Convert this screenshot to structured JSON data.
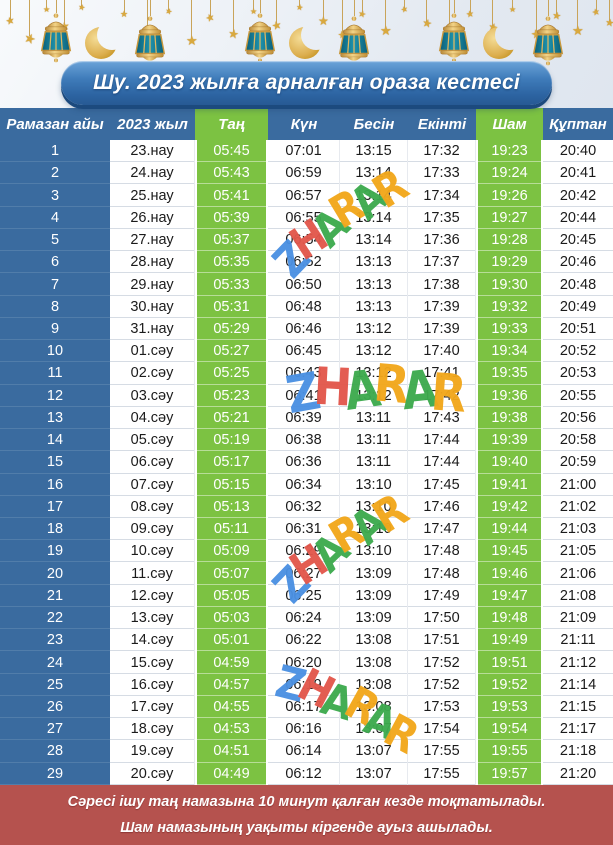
{
  "title": "Шу. 2023 жылға арналған ораза кестесі",
  "table": {
    "columns": [
      {
        "label": "Рамазан айы",
        "accent": false
      },
      {
        "label": "2023 жыл",
        "accent": false
      },
      {
        "label": "Таң",
        "accent": true
      },
      {
        "label": "Күн",
        "accent": false
      },
      {
        "label": "Бесін",
        "accent": false
      },
      {
        "label": "Екінті",
        "accent": false
      },
      {
        "label": "Шам",
        "accent": true
      },
      {
        "label": "Құптан",
        "accent": false
      }
    ],
    "rows": [
      {
        "day": "1",
        "date": "23.нау",
        "times": [
          "05:45",
          "07:01",
          "13:15",
          "17:32",
          "19:23",
          "20:40"
        ]
      },
      {
        "day": "2",
        "date": "24.нау",
        "times": [
          "05:43",
          "06:59",
          "13:14",
          "17:33",
          "19:24",
          "20:41"
        ]
      },
      {
        "day": "3",
        "date": "25.нау",
        "times": [
          "05:41",
          "06:57",
          "13:14",
          "17:34",
          "19:26",
          "20:42"
        ]
      },
      {
        "day": "4",
        "date": "26.нау",
        "times": [
          "05:39",
          "06:55",
          "13:14",
          "17:35",
          "19:27",
          "20:44"
        ]
      },
      {
        "day": "5",
        "date": "27.нау",
        "times": [
          "05:37",
          "06:54",
          "13:14",
          "17:36",
          "19:28",
          "20:45"
        ]
      },
      {
        "day": "6",
        "date": "28.нау",
        "times": [
          "05:35",
          "06:52",
          "13:13",
          "17:37",
          "19:29",
          "20:46"
        ]
      },
      {
        "day": "7",
        "date": "29.нау",
        "times": [
          "05:33",
          "06:50",
          "13:13",
          "17:38",
          "19:30",
          "20:48"
        ]
      },
      {
        "day": "8",
        "date": "30.нау",
        "times": [
          "05:31",
          "06:48",
          "13:13",
          "17:39",
          "19:32",
          "20:49"
        ]
      },
      {
        "day": "9",
        "date": "31.нау",
        "times": [
          "05:29",
          "06:46",
          "13:12",
          "17:39",
          "19:33",
          "20:51"
        ]
      },
      {
        "day": "10",
        "date": "01.сәу",
        "times": [
          "05:27",
          "06:45",
          "13:12",
          "17:40",
          "19:34",
          "20:52"
        ]
      },
      {
        "day": "11",
        "date": "02.сәу",
        "times": [
          "05:25",
          "06:43",
          "13:12",
          "17:41",
          "19:35",
          "20:53"
        ]
      },
      {
        "day": "12",
        "date": "03.сәу",
        "times": [
          "05:23",
          "06:41",
          "13:12",
          "17:42",
          "19:36",
          "20:55"
        ]
      },
      {
        "day": "13",
        "date": "04.сәу",
        "times": [
          "05:21",
          "06:39",
          "13:11",
          "17:43",
          "19:38",
          "20:56"
        ]
      },
      {
        "day": "14",
        "date": "05.сәу",
        "times": [
          "05:19",
          "06:38",
          "13:11",
          "17:44",
          "19:39",
          "20:58"
        ]
      },
      {
        "day": "15",
        "date": "06.сәу",
        "times": [
          "05:17",
          "06:36",
          "13:11",
          "17:44",
          "19:40",
          "20:59"
        ]
      },
      {
        "day": "16",
        "date": "07.сәу",
        "times": [
          "05:15",
          "06:34",
          "13:10",
          "17:45",
          "19:41",
          "21:00"
        ]
      },
      {
        "day": "17",
        "date": "08.сәу",
        "times": [
          "05:13",
          "06:32",
          "13:10",
          "17:46",
          "19:42",
          "21:02"
        ]
      },
      {
        "day": "18",
        "date": "09.сәу",
        "times": [
          "05:11",
          "06:31",
          "13:10",
          "17:47",
          "19:44",
          "21:03"
        ]
      },
      {
        "day": "19",
        "date": "10.сәу",
        "times": [
          "05:09",
          "06:29",
          "13:10",
          "17:48",
          "19:45",
          "21:05"
        ]
      },
      {
        "day": "20",
        "date": "11.сәу",
        "times": [
          "05:07",
          "06:27",
          "13:09",
          "17:48",
          "19:46",
          "21:06"
        ]
      },
      {
        "day": "21",
        "date": "12.сәу",
        "times": [
          "05:05",
          "06:25",
          "13:09",
          "17:49",
          "19:47",
          "21:08"
        ]
      },
      {
        "day": "22",
        "date": "13.сәу",
        "times": [
          "05:03",
          "06:24",
          "13:09",
          "17:50",
          "19:48",
          "21:09"
        ]
      },
      {
        "day": "23",
        "date": "14.сәу",
        "times": [
          "05:01",
          "06:22",
          "13:08",
          "17:51",
          "19:49",
          "21:11"
        ]
      },
      {
        "day": "24",
        "date": "15.сәу",
        "times": [
          "04:59",
          "06:20",
          "13:08",
          "17:52",
          "19:51",
          "21:12"
        ]
      },
      {
        "day": "25",
        "date": "16.сәу",
        "times": [
          "04:57",
          "06:19",
          "13:08",
          "17:52",
          "19:52",
          "21:14"
        ]
      },
      {
        "day": "26",
        "date": "17.сәу",
        "times": [
          "04:55",
          "06:17",
          "13:08",
          "17:53",
          "19:53",
          "21:15"
        ]
      },
      {
        "day": "27",
        "date": "18.сәу",
        "times": [
          "04:53",
          "06:16",
          "13:07",
          "17:54",
          "19:54",
          "21:17"
        ]
      },
      {
        "day": "28",
        "date": "19.сәу",
        "times": [
          "04:51",
          "06:14",
          "13:07",
          "17:55",
          "19:55",
          "21:18"
        ]
      },
      {
        "day": "29",
        "date": "20.сәу",
        "times": [
          "04:49",
          "06:12",
          "13:07",
          "17:55",
          "19:57",
          "21:20"
        ]
      }
    ]
  },
  "watermark": {
    "text": "ZHARAR",
    "letter_colors": [
      "#4a90e2",
      "#e2574c",
      "#3daa4e",
      "#f2a71b",
      "#3daa4e",
      "#f2a71b"
    ]
  },
  "footer": {
    "line1": "Сәресі ішу таң намазына 10 минут қалған кезде тоқтатылады.",
    "line2": "Шам намазының уақыты кіргенде ауыз ашылады."
  },
  "colors": {
    "header_blue": "#3a6b9f",
    "accent_green": "#7cc242",
    "footer_red": "#b5524e",
    "banner_blue": "#2c63a1",
    "gold": "#d4a73f",
    "lantern_teal": "#15809c"
  },
  "icons": [
    "lantern-icon",
    "crescent-moon-icon",
    "star-icon"
  ]
}
